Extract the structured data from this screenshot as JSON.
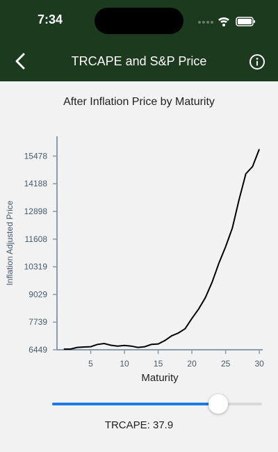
{
  "status_bar": {
    "time": "7:34"
  },
  "nav": {
    "title": "TRCAPE and S&P Price",
    "back_icon": "chevron-left-icon",
    "info_icon": "info-circle-icon"
  },
  "colors": {
    "header_bg": "#1c3a1e",
    "accent": "#1b7ae6",
    "line": "#000000"
  },
  "chart_data": {
    "type": "line",
    "title": "After Inflation Price by Maturity",
    "xlabel": "Maturity",
    "ylabel": "Inflation Adjusted Price",
    "xlim": [
      0,
      30.5
    ],
    "ylim": [
      6449,
      16400
    ],
    "x_ticks": [
      5,
      10,
      15,
      20,
      25,
      30
    ],
    "y_ticks": [
      6449,
      7739,
      9029,
      10319,
      11608,
      12898,
      14188,
      15478
    ],
    "grid": false,
    "x": [
      1,
      2,
      3,
      4,
      5,
      6,
      7,
      8,
      9,
      10,
      11,
      12,
      13,
      14,
      15,
      16,
      17,
      18,
      19,
      20,
      21,
      22,
      23,
      24,
      25,
      26,
      27,
      28,
      29,
      30
    ],
    "series": [
      {
        "values": [
          6480,
          6480,
          6560,
          6580,
          6590,
          6700,
          6740,
          6660,
          6620,
          6650,
          6620,
          6560,
          6590,
          6700,
          6720,
          6880,
          7100,
          7230,
          7430,
          7910,
          8350,
          8880,
          9600,
          10480,
          11250,
          12120,
          13450,
          14650,
          14990,
          15800
        ]
      }
    ]
  },
  "slider": {
    "label": "TRCAPE: 37.9",
    "value_fraction": 0.79
  }
}
